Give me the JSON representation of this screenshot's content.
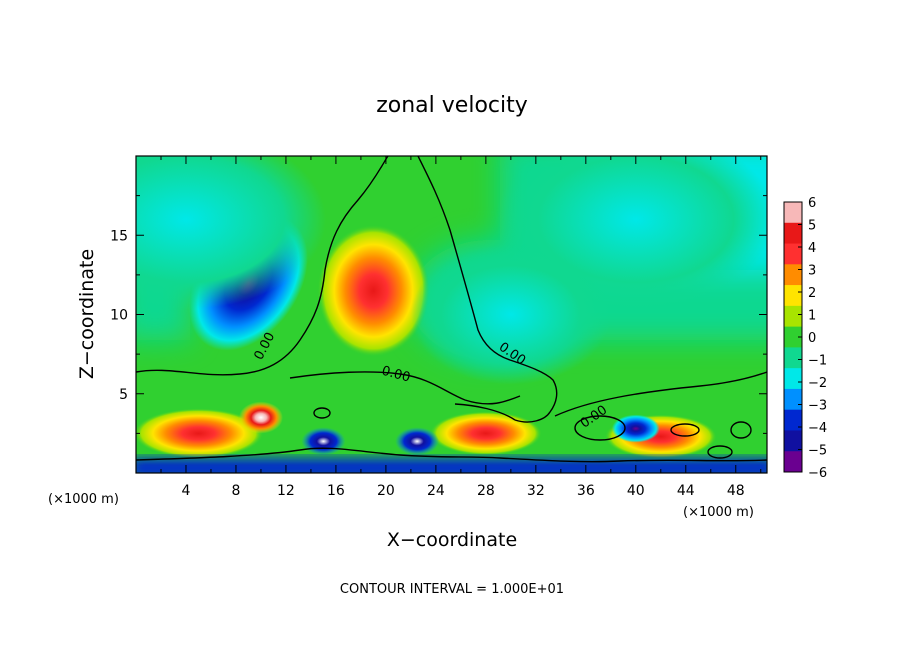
{
  "chart_data": {
    "type": "heatmap",
    "title": "zonal velocity",
    "xlabel": "X−coordinate",
    "ylabel": "Z−coordinate",
    "x_unit_left": "(×1000 m)",
    "x_unit_right": "(×1000 m)",
    "xlim": [
      0,
      50.5
    ],
    "ylim": [
      0,
      20
    ],
    "x_ticks": [
      "4",
      "8",
      "12",
      "16",
      "20",
      "24",
      "28",
      "32",
      "36",
      "40",
      "44",
      "48"
    ],
    "x_tick_values": [
      4,
      8,
      12,
      16,
      20,
      24,
      28,
      32,
      36,
      40,
      44,
      48
    ],
    "y_ticks": [
      "5",
      "10",
      "15"
    ],
    "y_tick_values": [
      5,
      10,
      15
    ],
    "colorbar": {
      "labels": [
        "6",
        "5",
        "4",
        "3",
        "2",
        "1",
        "0",
        "−1",
        "−2",
        "−3",
        "−4",
        "−5",
        "−6"
      ],
      "values": [
        6,
        5,
        4,
        3,
        2,
        1,
        0,
        -1,
        -2,
        -3,
        -4,
        -5,
        -6
      ],
      "colors": [
        "#f7b8b8",
        "#e81818",
        "#ff3030",
        "#ff8c00",
        "#ffe400",
        "#a8e400",
        "#30d030",
        "#10d890",
        "#00e8e8",
        "#0090ff",
        "#0028d0",
        "#1010a0",
        "#6a0090"
      ]
    },
    "contour_labels": [
      "0.00",
      "0.00",
      "0.00",
      "0.00"
    ],
    "features": [
      {
        "x": 9,
        "z": 12,
        "value": -5.5
      },
      {
        "x": 19,
        "z": 11.5,
        "value": 4
      },
      {
        "x": 5,
        "z": 2.5,
        "value": 5
      },
      {
        "x": 10,
        "z": 3.5,
        "value": 6
      },
      {
        "x": 28,
        "z": 2.5,
        "value": 4
      },
      {
        "x": 42,
        "z": 2.3,
        "value": 4
      },
      {
        "x": 22.5,
        "z": 2,
        "value": -5
      },
      {
        "x": 15,
        "z": 2,
        "value": -4.5
      },
      {
        "x": 40,
        "z": 2.8,
        "value": -3
      },
      {
        "x": 40,
        "z": 16,
        "value": -2
      },
      {
        "x": 4,
        "z": 16,
        "value": -2
      },
      {
        "x": 30,
        "z": 10,
        "value": -1
      }
    ],
    "footer": "CONTOUR INTERVAL = 1.000E+01"
  }
}
